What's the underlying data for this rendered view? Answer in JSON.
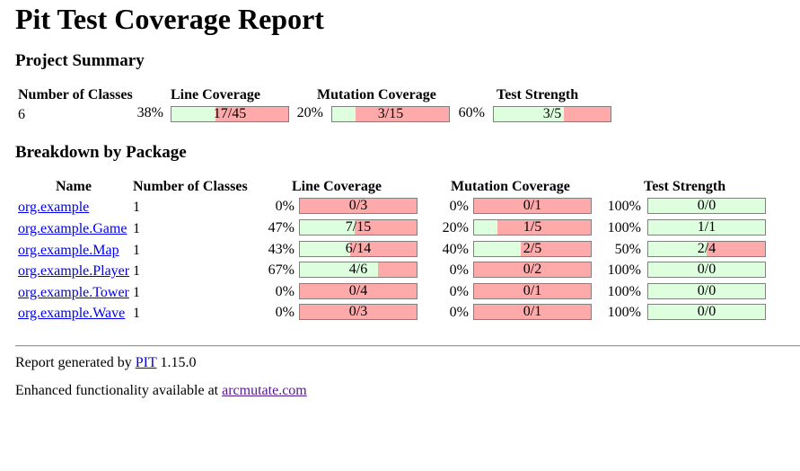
{
  "title": "Pit Test Coverage Report",
  "project_summary": {
    "heading": "Project Summary",
    "headers": [
      "Number of Classes",
      "Line Coverage",
      "Mutation Coverage",
      "Test Strength"
    ],
    "classes": "6",
    "line": {
      "pct": "38%",
      "label": "17/45",
      "fraction": 0.378
    },
    "mutation": {
      "pct": "20%",
      "label": "3/15",
      "fraction": 0.2
    },
    "strength": {
      "pct": "60%",
      "label": "3/5",
      "fraction": 0.6
    }
  },
  "breakdown": {
    "heading": "Breakdown by Package",
    "headers": [
      "Name",
      "Number of Classes",
      "Line Coverage",
      "Mutation Coverage",
      "Test Strength"
    ],
    "rows": [
      {
        "name": "org.example",
        "classes": "1",
        "line": {
          "pct": "0%",
          "label": "0/3",
          "fraction": 0.0
        },
        "mutation": {
          "pct": "0%",
          "label": "0/1",
          "fraction": 0.0
        },
        "strength": {
          "pct": "100%",
          "label": "0/0",
          "fraction": 1.0
        }
      },
      {
        "name": "org.example.Game",
        "classes": "1",
        "line": {
          "pct": "47%",
          "label": "7/15",
          "fraction": 0.467
        },
        "mutation": {
          "pct": "20%",
          "label": "1/5",
          "fraction": 0.2
        },
        "strength": {
          "pct": "100%",
          "label": "1/1",
          "fraction": 1.0
        }
      },
      {
        "name": "org.example.Map",
        "classes": "1",
        "line": {
          "pct": "43%",
          "label": "6/14",
          "fraction": 0.429
        },
        "mutation": {
          "pct": "40%",
          "label": "2/5",
          "fraction": 0.4
        },
        "strength": {
          "pct": "50%",
          "label": "2/4",
          "fraction": 0.5
        }
      },
      {
        "name": "org.example.Player",
        "classes": "1",
        "line": {
          "pct": "67%",
          "label": "4/6",
          "fraction": 0.667
        },
        "mutation": {
          "pct": "0%",
          "label": "0/2",
          "fraction": 0.0
        },
        "strength": {
          "pct": "100%",
          "label": "0/0",
          "fraction": 1.0
        }
      },
      {
        "name": "org.example.Tower",
        "classes": "1",
        "line": {
          "pct": "0%",
          "label": "0/4",
          "fraction": 0.0
        },
        "mutation": {
          "pct": "0%",
          "label": "0/1",
          "fraction": 0.0
        },
        "strength": {
          "pct": "100%",
          "label": "0/0",
          "fraction": 1.0
        }
      },
      {
        "name": "org.example.Wave",
        "classes": "1",
        "line": {
          "pct": "0%",
          "label": "0/3",
          "fraction": 0.0
        },
        "mutation": {
          "pct": "0%",
          "label": "0/1",
          "fraction": 0.0
        },
        "strength": {
          "pct": "100%",
          "label": "0/0",
          "fraction": 1.0
        }
      }
    ]
  },
  "footer": {
    "generated_prefix": "Report generated by",
    "pit_link": "PIT",
    "version": "1.15.0",
    "enhanced_prefix": "Enhanced functionality available at",
    "arcmutate_link": "arcmutate.com"
  },
  "colors": {
    "covered": "#ddffdd",
    "uncovered": "#ffaaaa",
    "link": "#0000ee",
    "visited_link": "#551a8b"
  }
}
